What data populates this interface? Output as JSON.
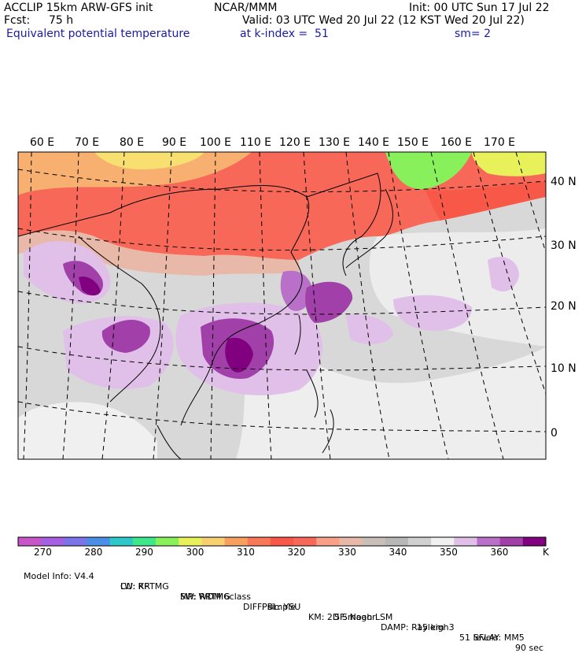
{
  "header": {
    "model": "ACCLIP 15km ARW-GFS init",
    "org": "NCAR/MMM",
    "init": "Init: 00 UTC Sun 17 Jul 22",
    "fcst_label": "Fcst:",
    "fcst_value": "75 h",
    "valid": "Valid: 03 UTC Wed 20 Jul 22 (12 KST Wed 20 Jul 22)",
    "field": "Equivalent potential temperature",
    "level": "at k-index =  51",
    "smooth": "sm= 2"
  },
  "map": {
    "lon_labels": [
      "60 E",
      "70 E",
      "80 E",
      "90 E",
      "100 E",
      "110 E",
      "120 E",
      "130 E",
      "140 E",
      "150 E",
      "160 E",
      "170 E"
    ],
    "lat_labels": [
      "40 N",
      "30 N",
      "20 N",
      "10 N",
      "0"
    ]
  },
  "colorbar": {
    "unit": "K",
    "tick_labels": [
      "270",
      "280",
      "290",
      "300",
      "310",
      "320",
      "330",
      "340",
      "350",
      "360"
    ],
    "colors": [
      "#c855c8",
      "#a460e0",
      "#7a74e8",
      "#4a8ee8",
      "#2ec8c8",
      "#3ee88a",
      "#88f05a",
      "#e8f05a",
      "#f8d070",
      "#f8a060",
      "#f87858",
      "#f85848",
      "#f86858",
      "#f8a088",
      "#e8b8a8",
      "#c8c0b8",
      "#b8b8b8",
      "#d0d0d0",
      "#f0f0f0",
      "#e0c0e8",
      "#b870c8",
      "#a040a8",
      "#800080"
    ]
  },
  "footer": {
    "line1": [
      "Model Info: V4.4",
      "CU: KF",
      "MP: WDM 6class",
      "PBL: YSU",
      "SF: Noah LSM",
      "15 km",
      "51 levels",
      "90 sec"
    ],
    "line2": [
      "LW: RRTMG",
      "SW: RRTMG",
      "DIFF: simple",
      "KM: 2D Smagor",
      "DAMP: Rayleigh3",
      "SFLAY: MM5"
    ]
  }
}
